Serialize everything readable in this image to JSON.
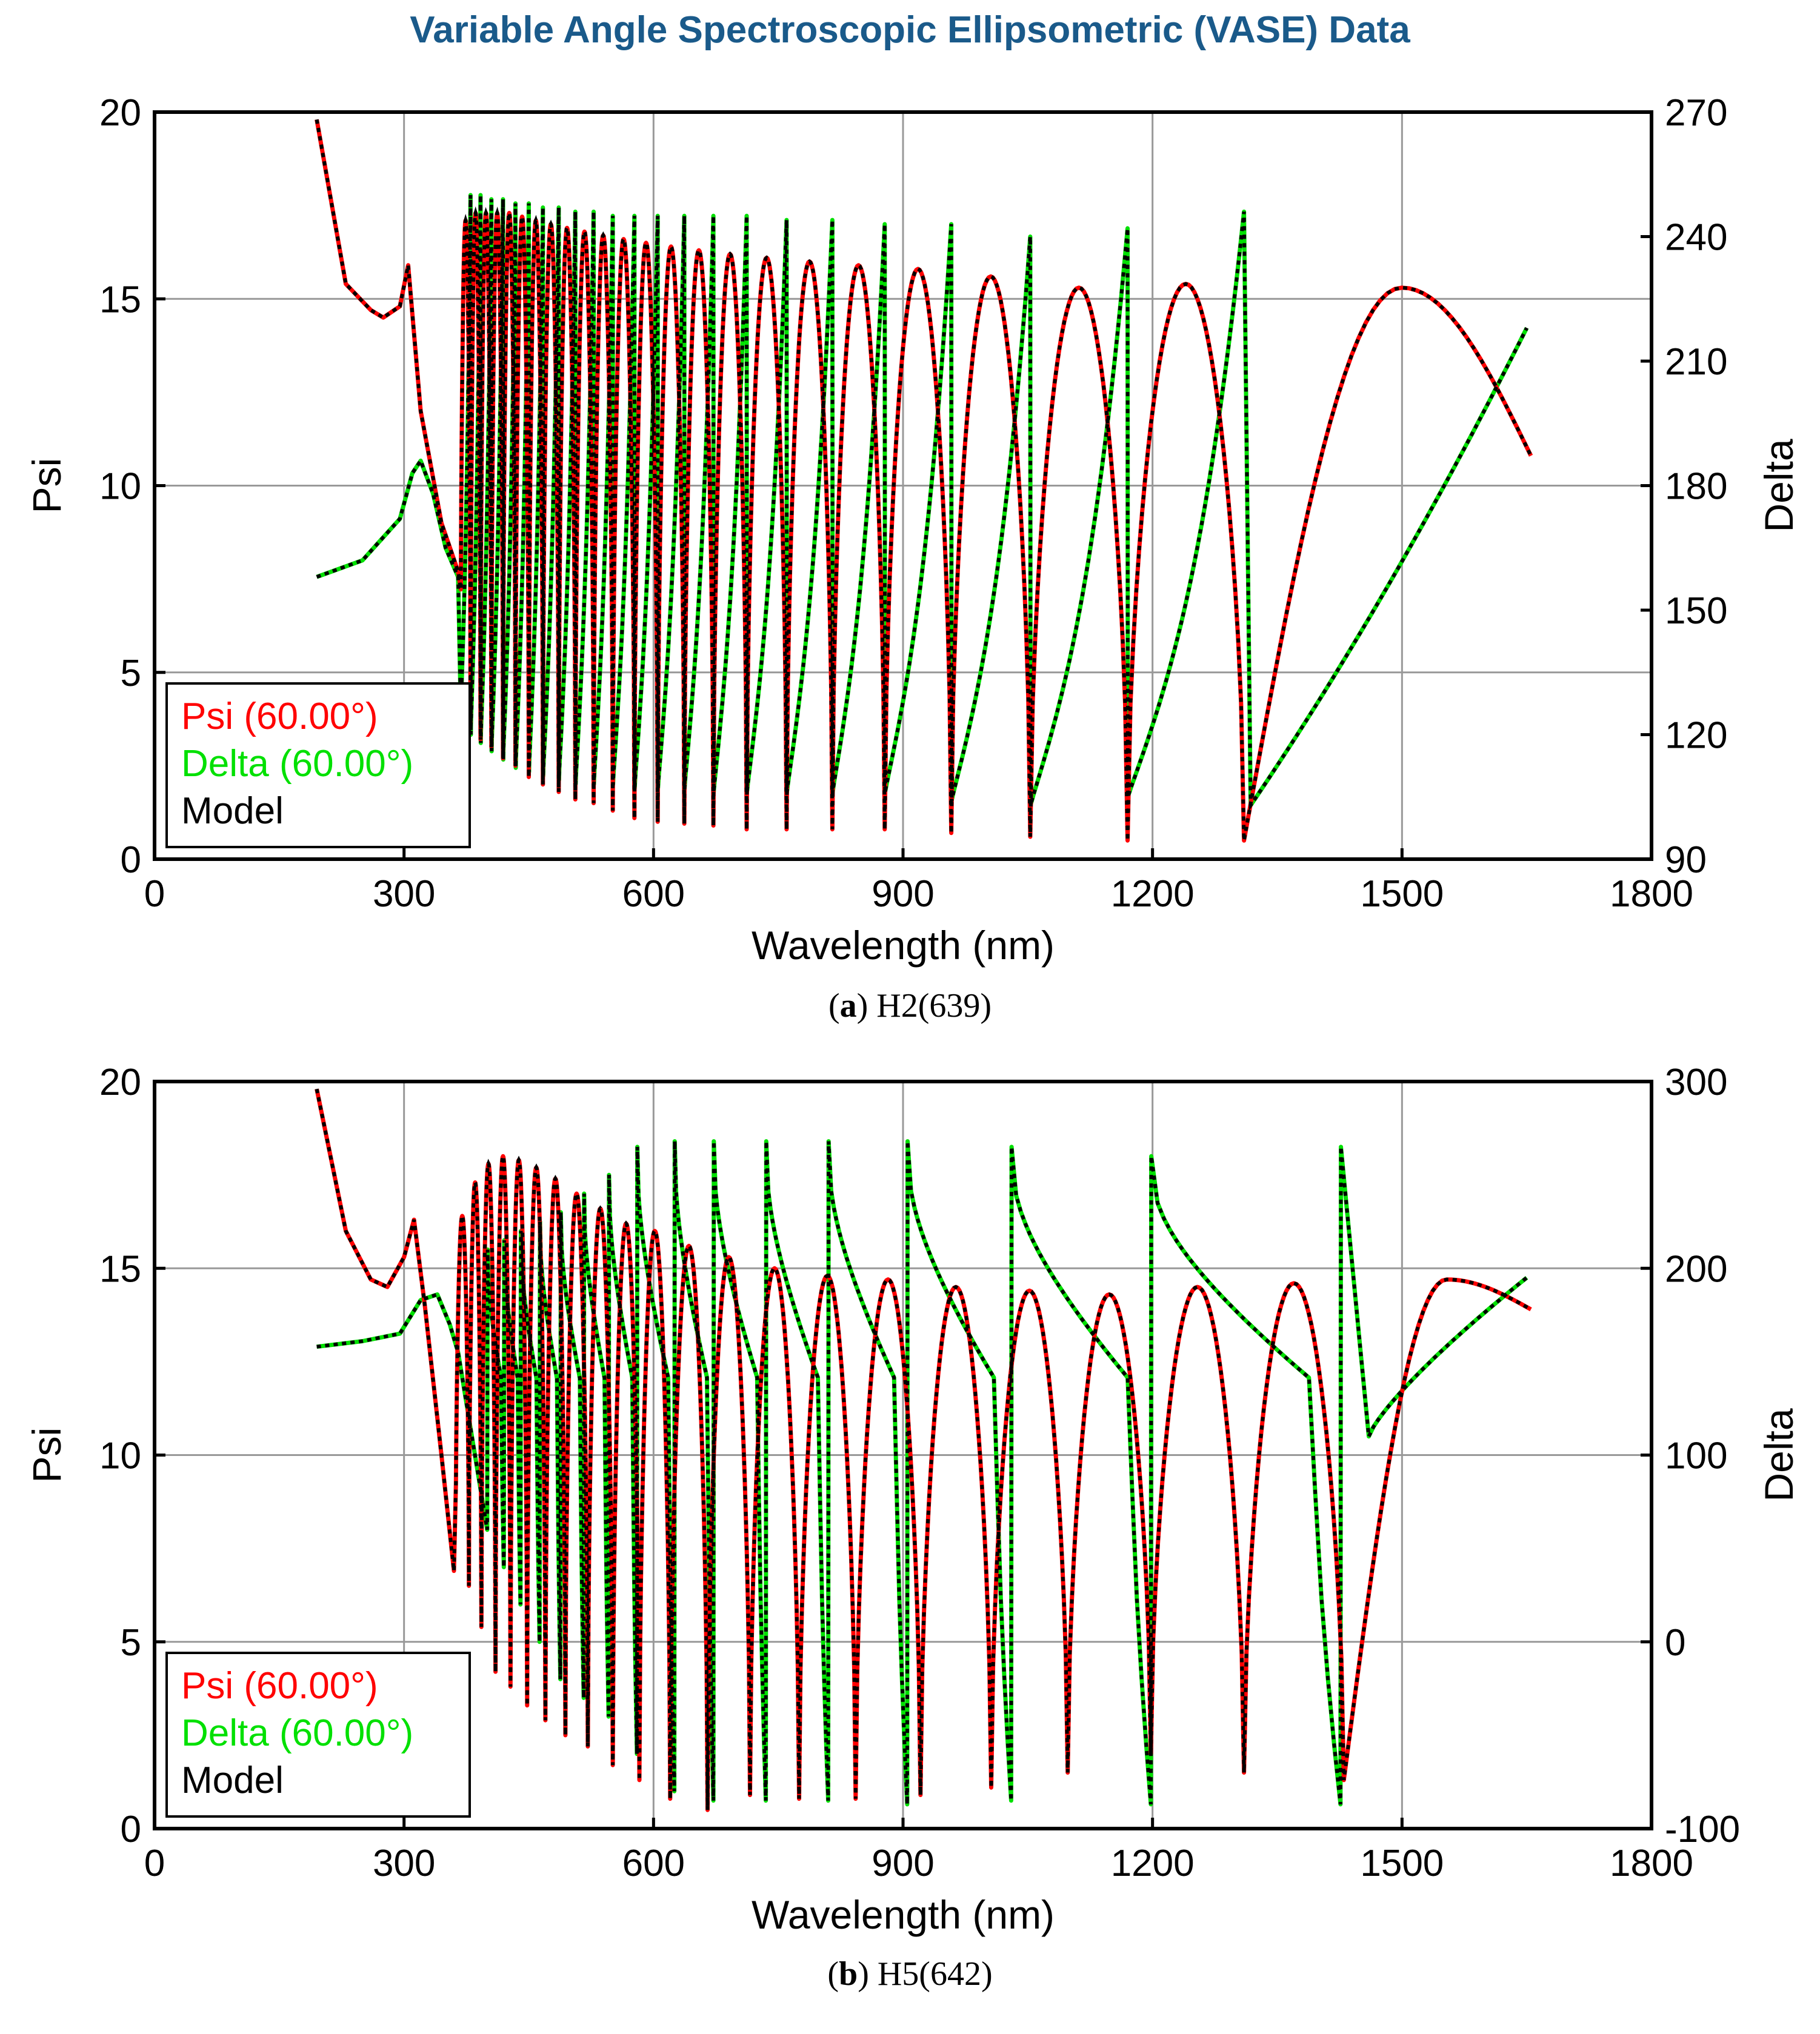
{
  "title": "Variable Angle Spectroscopic Ellipsometric (VASE) Data",
  "colors": {
    "psi": "#ff0000",
    "delta": "#00e000",
    "model": "#000000",
    "title": "#1a5a8a",
    "grid": "#999999"
  },
  "chart_data": [
    {
      "id": "a",
      "type": "line",
      "caption_letter": "a",
      "caption_text": "H2(639)",
      "xlabel": "Wavelength (nm)",
      "ylabel": "Psi",
      "y2label": "Delta",
      "xlim": [
        0,
        1800
      ],
      "ylim": [
        0,
        20
      ],
      "y2lim": [
        90,
        270
      ],
      "xticks": [
        "0",
        "300",
        "600",
        "900",
        "1200",
        "1500",
        "1800"
      ],
      "yticks": [
        "0",
        "5",
        "10",
        "15",
        "20"
      ],
      "y2ticks": [
        "90",
        "120",
        "150",
        "180",
        "210",
        "240",
        "270"
      ],
      "grid": true,
      "legend_position": "bottom-left",
      "legend": [
        "Psi (60.00°)",
        "Delta (60.00°)",
        "Model"
      ],
      "series": [
        {
          "name": "Psi (60.00°)",
          "axis": "left",
          "x_range": [
            195,
            1650
          ],
          "baseline": [
            [
              195,
              19.8
            ],
            [
              230,
              15.4
            ],
            [
              260,
              14.7
            ],
            [
              275,
              14.5
            ],
            [
              295,
              14.8
            ],
            [
              305,
              15.9
            ],
            [
              320,
              12.0
            ],
            [
              345,
              9.0
            ],
            [
              365,
              7.7
            ]
          ],
          "osc_start": 368,
          "minima": [
            368,
            380,
            392,
            405,
            419,
            434,
            450,
            467,
            486,
            506,
            528,
            551,
            577,
            605,
            637,
            672,
            712,
            760,
            815,
            878,
            958,
            1053,
            1170,
            1310,
            1655
          ],
          "max_values": [
            17.1,
            17.3,
            17.3,
            17.3,
            17.3,
            17.2,
            17.1,
            17.0,
            16.9,
            16.8,
            16.7,
            16.6,
            16.5,
            16.4,
            16.3,
            16.2,
            16.1,
            16.0,
            15.9,
            15.8,
            15.6,
            15.3,
            15.4,
            15.3
          ],
          "min_values": [
            4.0,
            3.6,
            3.2,
            3.0,
            2.7,
            2.5,
            2.2,
            2.0,
            1.8,
            1.6,
            1.5,
            1.3,
            1.1,
            1.0,
            0.95,
            0.9,
            0.8,
            0.8,
            0.8,
            0.8,
            0.7,
            0.6,
            0.5,
            0.5,
            10.8
          ]
        },
        {
          "name": "Delta (60.00°)",
          "axis": "right",
          "x_range": [
            195,
            1650
          ],
          "baseline": [
            [
              195,
              158
            ],
            [
              250,
              162
            ],
            [
              295,
              172
            ],
            [
              310,
              183
            ],
            [
              320,
              186
            ],
            [
              335,
              178
            ],
            [
              350,
              165
            ],
            [
              365,
              158
            ]
          ],
          "osc_start": 368,
          "jump_points": [
            380,
            392,
            405,
            419,
            434,
            450,
            467,
            486,
            506,
            528,
            551,
            577,
            605,
            637,
            672,
            712,
            760,
            815,
            878,
            958,
            1053,
            1170,
            1310
          ],
          "peak_values": [
            250,
            250,
            249,
            249,
            248,
            248,
            247,
            247,
            246,
            246,
            245,
            245,
            245,
            245,
            245,
            245,
            244,
            244,
            243,
            243,
            240,
            242,
            246
          ],
          "trough_values": [
            125,
            120,
            118,
            116,
            114,
            112,
            111,
            110,
            109,
            108,
            108,
            108,
            107,
            107,
            107,
            106,
            106,
            106,
            106,
            106,
            104,
            103
          ],
          "end_value": 218
        },
        {
          "name": "Model",
          "axis": "both",
          "style": "dotted"
        }
      ]
    },
    {
      "id": "b",
      "type": "line",
      "caption_letter": "b",
      "caption_text": "H5(642)",
      "xlabel": "Wavelength (nm)",
      "ylabel": "Psi",
      "y2label": "Delta",
      "xlim": [
        0,
        1800
      ],
      "ylim": [
        0,
        20
      ],
      "y2lim": [
        -100,
        300
      ],
      "xticks": [
        "0",
        "300",
        "600",
        "900",
        "1200",
        "1500",
        "1800"
      ],
      "yticks": [
        "0",
        "5",
        "10",
        "15",
        "20"
      ],
      "y2ticks": [
        "-100",
        "0",
        "100",
        "200",
        "300"
      ],
      "grid": true,
      "legend_position": "bottom-left",
      "legend": [
        "Psi (60.00°)",
        "Delta (60.00°)",
        "Model"
      ],
      "series": [
        {
          "name": "Psi (60.00°)",
          "axis": "left",
          "x_range": [
            195,
            1650
          ],
          "baseline": [
            [
              195,
              19.8
            ],
            [
              230,
              16.0
            ],
            [
              260,
              14.7
            ],
            [
              280,
              14.5
            ],
            [
              300,
              15.3
            ],
            [
              312,
              16.3
            ],
            [
              325,
              14.0
            ],
            [
              345,
              10.0
            ],
            [
              360,
              6.9
            ]
          ],
          "osc_start": 362,
          "minima": [
            362,
            378,
            393,
            410,
            428,
            448,
            470,
            494,
            521,
            551,
            583,
            620,
            665,
            716,
            775,
            843,
            921,
            1006,
            1098,
            1198,
            1310,
            1430,
            1655
          ],
          "max_values": [
            16.4,
            17.3,
            17.8,
            18.0,
            17.9,
            17.7,
            17.4,
            17.0,
            16.6,
            16.2,
            16.0,
            15.6,
            15.3,
            15.0,
            14.8,
            14.7,
            14.5,
            14.4,
            14.3,
            14.5,
            14.6,
            14.7
          ],
          "min_values": [
            6.9,
            6.5,
            5.4,
            4.2,
            3.8,
            3.3,
            2.9,
            2.5,
            2.2,
            1.7,
            1.3,
            0.8,
            0.5,
            0.9,
            0.8,
            0.8,
            0.9,
            1.1,
            1.5,
            2.0,
            1.5,
            1.3,
            13.9
          ]
        },
        {
          "name": "Delta (60.00°)",
          "axis": "right",
          "x_range": [
            195,
            1650
          ],
          "baseline": [
            [
              195,
              158
            ],
            [
              250,
              161
            ],
            [
              295,
              165
            ],
            [
              320,
              183
            ],
            [
              340,
              186
            ],
            [
              355,
              170
            ],
            [
              365,
              155
            ]
          ],
          "osc_start": 365,
          "troughs": [
            400,
            420,
            440,
            463,
            488,
            516,
            546,
            580,
            625,
            672,
            735,
            810,
            905,
            1030,
            1198,
            1426
          ],
          "trough_values": [
            60,
            40,
            20,
            0,
            -20,
            -30,
            -40,
            -60,
            -80,
            -85,
            -85,
            -85,
            -87,
            -85,
            -87,
            -87
          ],
          "peak_values": [
            210,
            215,
            220,
            225,
            230,
            240,
            250,
            265,
            268,
            268,
            268,
            268,
            268,
            265,
            260,
            265
          ],
          "end_value": 195
        },
        {
          "name": "Model",
          "axis": "both",
          "style": "dotted"
        }
      ]
    }
  ]
}
